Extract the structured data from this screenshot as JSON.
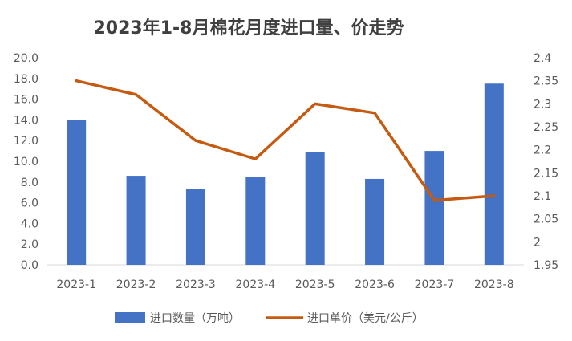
{
  "chart_data": {
    "type": "bar+line",
    "title": "2023年1-8月棉花月度进口量、价走势",
    "categories": [
      "2023-1",
      "2023-2",
      "2023-3",
      "2023-4",
      "2023-5",
      "2023-6",
      "2023-7",
      "2023-8"
    ],
    "series": [
      {
        "name": "进口数量（万吨）",
        "type": "bar",
        "axis": "left",
        "color": "#4472C4",
        "values": [
          14.0,
          8.6,
          7.3,
          8.5,
          10.9,
          8.3,
          11.0,
          17.5
        ]
      },
      {
        "name": "进口单价（美元/公斤）",
        "type": "line",
        "axis": "right",
        "color": "#C55A11",
        "values": [
          2.35,
          2.32,
          2.22,
          2.18,
          2.3,
          2.28,
          2.09,
          2.1
        ]
      }
    ],
    "y_left": {
      "ylim": [
        0,
        20
      ],
      "ticks": [
        "0.0",
        "2.0",
        "4.0",
        "6.0",
        "8.0",
        "10.0",
        "12.0",
        "14.0",
        "16.0",
        "18.0",
        "20.0"
      ]
    },
    "y_right": {
      "ylim": [
        1.95,
        2.4
      ],
      "ticks": [
        "1.95",
        "2",
        "2.05",
        "2.1",
        "2.15",
        "2.2",
        "2.25",
        "2.3",
        "2.35",
        "2.4"
      ]
    },
    "legend_position": "bottom",
    "grid": false
  }
}
